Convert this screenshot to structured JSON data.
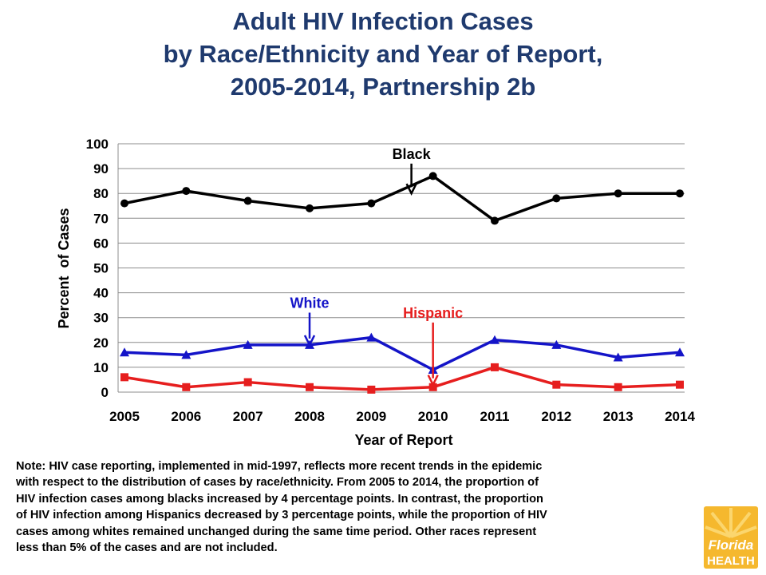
{
  "title_lines": [
    "Adult HIV Infection Cases",
    "by Race/Ethnicity and Year of Report,",
    "2005-2014, Partnership 2b"
  ],
  "note_lines": [
    "Note: HIV case reporting, implemented in mid-1997, reflects more recent trends in the epidemic",
    "with respect to the distribution of cases by race/ethnicity. From 2005 to 2014, the proportion of",
    "HIV infection cases among blacks increased by 4 percentage points. In contrast, the proportion",
    "of HIV infection among Hispanics decreased by 3 percentage points, while the proportion of HIV",
    "cases among whites remained unchanged during the same time period. Other races represent",
    "less than  5% of the cases and are not included."
  ],
  "logo": {
    "line1": "Florida",
    "line2": "HEALTH"
  },
  "chart_data": {
    "type": "line",
    "xlabel": "Year of Report",
    "ylabel": "Percent  of Cases",
    "x": [
      2005,
      2006,
      2007,
      2008,
      2009,
      2010,
      2011,
      2012,
      2013,
      2014
    ],
    "ylim": [
      0,
      100
    ],
    "yticks": [
      0,
      10,
      20,
      30,
      40,
      50,
      60,
      70,
      80,
      90,
      100
    ],
    "grid": true,
    "series": [
      {
        "name": "Black",
        "color": "#000000",
        "marker": "circle",
        "values": [
          76,
          81,
          77,
          74,
          76,
          87,
          69,
          78,
          80,
          80
        ]
      },
      {
        "name": "White",
        "color": "#1414c8",
        "marker": "triangle",
        "values": [
          16,
          15,
          19,
          19,
          22,
          9,
          21,
          19,
          14,
          16
        ]
      },
      {
        "name": "Hispanic",
        "color": "#e61e1e",
        "marker": "square",
        "values": [
          6,
          2,
          4,
          2,
          1,
          2,
          10,
          3,
          2,
          3
        ]
      }
    ],
    "annotations": [
      {
        "text": "Black",
        "color": "#000000",
        "x": 2009.65,
        "from_y": 92,
        "to_y": 80
      },
      {
        "text": "White",
        "color": "#1414c8",
        "x": 2008.0,
        "from_y": 32,
        "to_y": 19
      },
      {
        "text": "Hispanic",
        "color": "#e61e1e",
        "x": 2010.0,
        "from_y": 28,
        "to_y": 3
      }
    ]
  }
}
